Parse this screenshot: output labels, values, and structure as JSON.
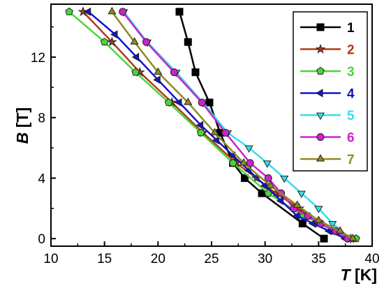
{
  "chart_data": {
    "type": "line",
    "xlabel": {
      "var": "T",
      "unit": " [K]"
    },
    "ylabel": {
      "var": "B",
      "unit": " [T]"
    },
    "xlim": [
      10,
      40
    ],
    "ylim": [
      -0.5,
      15.5
    ],
    "xticks": [
      10,
      15,
      20,
      25,
      30,
      35,
      40
    ],
    "yticks": [
      0,
      4,
      8,
      12
    ],
    "grid": false,
    "legend_position": "top-right",
    "series": [
      {
        "name": "1",
        "color": "#000000",
        "marker": "square",
        "x": [
          22.0,
          22.8,
          23.5,
          24.8,
          25.8,
          27.0,
          28.1,
          29.7,
          33.5,
          35.5
        ],
        "y": [
          15,
          13,
          11,
          9,
          7,
          5,
          4,
          3,
          1,
          0
        ]
      },
      {
        "name": "2",
        "color": "#b03a1a",
        "marker": "star",
        "x": [
          13.0,
          15.7,
          18.3,
          21.3,
          24.2,
          27.3,
          29.2,
          31.0,
          33.2,
          35.0,
          36.7,
          38.0
        ],
        "y": [
          15,
          13,
          11,
          9,
          7,
          5,
          4,
          3,
          2,
          1,
          0.5,
          0
        ]
      },
      {
        "name": "3",
        "color": "#4cd43a",
        "marker": "pentagon",
        "x": [
          11.7,
          15.0,
          17.9,
          21.0,
          24.0,
          27.0,
          30.3,
          33.6,
          36.5,
          38.5
        ],
        "y": [
          15,
          13,
          11,
          9,
          7,
          5,
          3,
          1.5,
          0.5,
          0
        ]
      },
      {
        "name": "4",
        "color": "#1414c8",
        "marker": "triangle-left",
        "x": [
          13.5,
          16.0,
          18.0,
          20.0,
          22.0,
          24.0,
          25.5,
          27.0,
          28.5,
          30.0,
          31.5,
          33.0,
          34.5,
          36.0,
          37.5
        ],
        "y": [
          15,
          13.5,
          12,
          10.5,
          9,
          7.5,
          6.5,
          5.5,
          4.5,
          3.5,
          2.5,
          1.5,
          1,
          0.5,
          0
        ]
      },
      {
        "name": "5",
        "color": "#33ddee",
        "marker": "triangle-down",
        "x": [
          16.8,
          19.0,
          21.7,
          24.2,
          26.5,
          28.5,
          30.2,
          31.8,
          33.4,
          35.0,
          36.3,
          38.0
        ],
        "y": [
          15,
          13,
          11,
          9,
          7,
          6,
          5,
          4,
          3,
          2,
          1,
          0
        ]
      },
      {
        "name": "6",
        "color": "#cc22cc",
        "marker": "circle",
        "x": [
          16.7,
          18.9,
          21.5,
          24.1,
          26.3,
          28.6,
          30.3,
          31.5,
          32.7,
          34.0,
          35.2,
          36.6,
          37.7
        ],
        "y": [
          15,
          13,
          11,
          9,
          7,
          5,
          4,
          3,
          2,
          1.5,
          1,
          0.5,
          0
        ]
      },
      {
        "name": "7",
        "color": "#8f8a20",
        "marker": "triangle-up",
        "x": [
          15.7,
          17.8,
          20.0,
          22.8,
          25.3,
          28.0,
          30.5,
          33.0,
          35.0,
          37.0,
          38.2
        ],
        "y": [
          15,
          13,
          11,
          9,
          7,
          5,
          3.5,
          2.2,
          1.2,
          0.5,
          0
        ]
      }
    ]
  }
}
